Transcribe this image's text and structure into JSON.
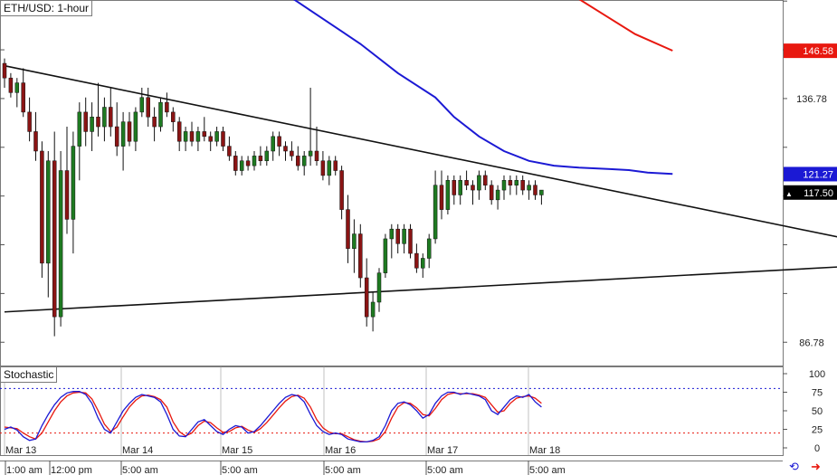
{
  "chart_data": {
    "title": "ETH/USD: 1-hour",
    "type": "candlestick",
    "price_axis": {
      "ticks": [
        "136.78",
        "86.78"
      ],
      "ylim": [
        82,
        157
      ]
    },
    "price_labels": [
      {
        "value": 146.58,
        "text": "146.58",
        "color": "#e8180f",
        "text_color": "#ffffff"
      },
      {
        "value": 121.27,
        "text": "121.27",
        "color": "#1b19d4",
        "text_color": "#ffffff"
      },
      {
        "value": 117.5,
        "text": "117.50",
        "color": "#000000",
        "text_color": "#ffffff",
        "marker": "▲"
      }
    ],
    "time_axis": {
      "labels": [
        "Mar 13",
        "Mar 14",
        "Mar 15",
        "Mar 16",
        "Mar 17",
        "Mar 18"
      ],
      "bottom_labels": [
        "1:00 am",
        "12:00 pm",
        "5:00 am",
        "5:00 am",
        "5:00 am",
        "5:00 am",
        "5:00 am"
      ]
    },
    "candles": [
      [
        144,
        145,
        139,
        141
      ],
      [
        141,
        142,
        137,
        138
      ],
      [
        138,
        141,
        135,
        140
      ],
      [
        140,
        143,
        133,
        134
      ],
      [
        134,
        137,
        128,
        130
      ],
      [
        130,
        134,
        124,
        126
      ],
      [
        126,
        128,
        100,
        103
      ],
      [
        103,
        126,
        96,
        124
      ],
      [
        124,
        130,
        88,
        92
      ],
      [
        92,
        126,
        90,
        122
      ],
      [
        122,
        131,
        109,
        112
      ],
      [
        112,
        130,
        105,
        127
      ],
      [
        127,
        136,
        120,
        134
      ],
      [
        134,
        137,
        127,
        130
      ],
      [
        130,
        136,
        126,
        133
      ],
      [
        133,
        140,
        129,
        131
      ],
      [
        131,
        137,
        128,
        135
      ],
      [
        135,
        139,
        129,
        131
      ],
      [
        131,
        136,
        125,
        127
      ],
      [
        127,
        134,
        122,
        132
      ],
      [
        132,
        134,
        127,
        128
      ],
      [
        128,
        135,
        126,
        134
      ],
      [
        134,
        139,
        133,
        137
      ],
      [
        137,
        139,
        131,
        133
      ],
      [
        133,
        135,
        128,
        131
      ],
      [
        131,
        137,
        130,
        136
      ],
      [
        136,
        138,
        133,
        134
      ],
      [
        134,
        135,
        130,
        132
      ],
      [
        132,
        133,
        126,
        128
      ],
      [
        128,
        131,
        126,
        130
      ],
      [
        130,
        132,
        127,
        128
      ],
      [
        128,
        131,
        126,
        130
      ],
      [
        130,
        133,
        128,
        129
      ],
      [
        129,
        130,
        126,
        128
      ],
      [
        128,
        131,
        127,
        130
      ],
      [
        130,
        131,
        126,
        127
      ],
      [
        127,
        129,
        124,
        125
      ],
      [
        125,
        126,
        121,
        122
      ],
      [
        122,
        125,
        121,
        124
      ],
      [
        124,
        125,
        122,
        123
      ],
      [
        123,
        126,
        122,
        125
      ],
      [
        125,
        127,
        123,
        124
      ],
      [
        124,
        127,
        123,
        126
      ],
      [
        126,
        130,
        124,
        129
      ],
      [
        129,
        130,
        125,
        127
      ],
      [
        127,
        128,
        124,
        126
      ],
      [
        126,
        128,
        124,
        125
      ],
      [
        125,
        127,
        122,
        123
      ],
      [
        123,
        126,
        121,
        125
      ],
      [
        125,
        139,
        123,
        126
      ],
      [
        126,
        131,
        123,
        124
      ],
      [
        124,
        126,
        120,
        121
      ],
      [
        121,
        125,
        119,
        124
      ],
      [
        124,
        125,
        121,
        122
      ],
      [
        122,
        123,
        112,
        114
      ],
      [
        114,
        117,
        103,
        106
      ],
      [
        106,
        112,
        101,
        109
      ],
      [
        109,
        111,
        98,
        100
      ],
      [
        100,
        104,
        90,
        92
      ],
      [
        92,
        97,
        89,
        95
      ],
      [
        95,
        102,
        93,
        101
      ],
      [
        101,
        109,
        100,
        108
      ],
      [
        108,
        111,
        104,
        110
      ],
      [
        110,
        111,
        105,
        107
      ],
      [
        107,
        111,
        105,
        110
      ],
      [
        110,
        111,
        104,
        105
      ],
      [
        105,
        107,
        101,
        102
      ],
      [
        102,
        105,
        100,
        104
      ],
      [
        104,
        109,
        102,
        108
      ],
      [
        108,
        122,
        107,
        119
      ],
      [
        119,
        122,
        112,
        114
      ],
      [
        114,
        121,
        113,
        120
      ],
      [
        120,
        121,
        115,
        117
      ],
      [
        117,
        121,
        115,
        120
      ],
      [
        120,
        122,
        118,
        119
      ],
      [
        119,
        120,
        115,
        118
      ],
      [
        118,
        122,
        116,
        121
      ],
      [
        121,
        122,
        118,
        119
      ],
      [
        119,
        120,
        115,
        116
      ],
      [
        116,
        119,
        114,
        118
      ],
      [
        118,
        121,
        116,
        120
      ],
      [
        120,
        121,
        117,
        119
      ],
      [
        119,
        121,
        117,
        120
      ],
      [
        120,
        121,
        117,
        118
      ],
      [
        118,
        120,
        116,
        119
      ],
      [
        119,
        120,
        116,
        117
      ],
      [
        117,
        118,
        115,
        118
      ]
    ],
    "moving_averages": [
      {
        "color": "#1b19d4",
        "points": [
          [
            43,
            160
          ],
          [
            50,
            154
          ],
          [
            57,
            148
          ],
          [
            63,
            142
          ],
          [
            69,
            137
          ],
          [
            72,
            133
          ],
          [
            76,
            129
          ],
          [
            80,
            126
          ],
          [
            84,
            124
          ],
          [
            88,
            123
          ],
          [
            92,
            122.6
          ],
          [
            97,
            122.3
          ],
          [
            100,
            122.1
          ],
          [
            103,
            121.6
          ],
          [
            107,
            121.3
          ]
        ]
      },
      {
        "color": "#e8180f",
        "points": [
          [
            91,
            158
          ],
          [
            96,
            154
          ],
          [
            101,
            150
          ],
          [
            107,
            146.6
          ]
        ]
      }
    ],
    "trendlines": [
      {
        "points": [
          [
            0,
            143.5
          ],
          [
            152,
            103.5
          ]
        ]
      },
      {
        "points": [
          [
            0,
            93
          ],
          [
            152,
            103.5
          ]
        ]
      }
    ],
    "stochastic": {
      "title": "Stochastic",
      "ticks": [
        "100",
        "75",
        "50",
        "25",
        "0"
      ],
      "levels": [
        80,
        20
      ],
      "k": [
        25,
        28,
        24,
        15,
        10,
        12,
        30,
        45,
        58,
        68,
        74,
        76,
        76,
        72,
        60,
        40,
        25,
        20,
        35,
        50,
        60,
        68,
        72,
        70,
        68,
        62,
        45,
        25,
        16,
        15,
        25,
        35,
        38,
        30,
        22,
        18,
        25,
        30,
        28,
        20,
        22,
        30,
        40,
        50,
        60,
        68,
        72,
        70,
        62,
        45,
        30,
        22,
        18,
        20,
        18,
        12,
        10,
        8,
        8,
        10,
        15,
        30,
        50,
        60,
        62,
        58,
        50,
        40,
        45,
        60,
        70,
        75,
        75,
        72,
        74,
        72,
        70,
        65,
        50,
        45,
        55,
        65,
        70,
        68,
        72,
        62,
        55
      ],
      "d": [
        28,
        27,
        26,
        20,
        15,
        12,
        20,
        35,
        50,
        62,
        70,
        74,
        75,
        74,
        66,
        50,
        32,
        22,
        28,
        42,
        55,
        64,
        70,
        71,
        69,
        65,
        55,
        35,
        22,
        16,
        20,
        30,
        36,
        34,
        27,
        21,
        22,
        27,
        29,
        24,
        21,
        26,
        34,
        44,
        54,
        63,
        69,
        71,
        67,
        55,
        38,
        27,
        21,
        19,
        19,
        15,
        11,
        9,
        8,
        9,
        12,
        22,
        40,
        55,
        61,
        60,
        54,
        45,
        43,
        53,
        65,
        72,
        74,
        73,
        73,
        73,
        71,
        68,
        58,
        48,
        50,
        60,
        67,
        69,
        70,
        67,
        60
      ]
    }
  },
  "icons": [
    "sync-icon",
    "arrow-icon"
  ]
}
